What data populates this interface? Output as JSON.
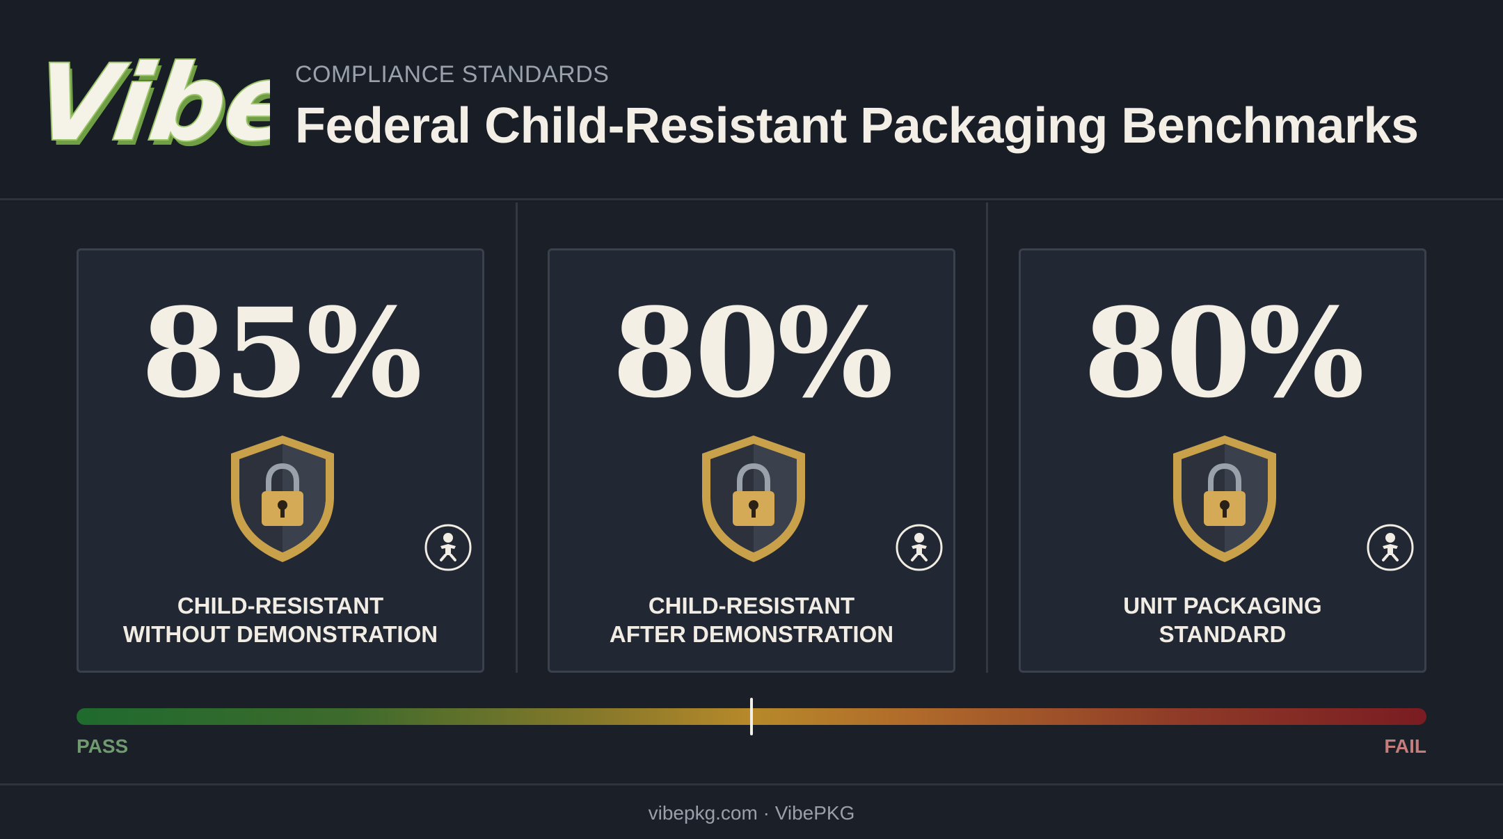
{
  "brand": {
    "logo_text": "Vibe",
    "logo_colors": {
      "fill": "#f5f2e8",
      "outline": "#7fae4e"
    }
  },
  "header": {
    "eyebrow": "COMPLIANCE STANDARDS",
    "title": "Federal Child-Resistant Packaging Benchmarks"
  },
  "cards": [
    {
      "value": "85%",
      "label_line1": "CHILD-RESISTANT",
      "label_line2": "WITHOUT DEMONSTRATION",
      "icons": [
        "shield-lock-icon",
        "child-icon"
      ]
    },
    {
      "value": "80%",
      "label_line1": "CHILD-RESISTANT",
      "label_line2": "AFTER DEMONSTRATION",
      "icons": [
        "shield-lock-icon",
        "child-icon"
      ]
    },
    {
      "value": "80%",
      "label_line1": "UNIT PACKAGING",
      "label_line2": "STANDARD",
      "icons": [
        "shield-lock-icon",
        "child-icon"
      ]
    }
  ],
  "scale": {
    "left_label": "PASS",
    "right_label": "FAIL",
    "marker_fraction": 0.5,
    "colors": {
      "pass": "#1f6a2e",
      "mid": "#b7892a",
      "fail": "#7a1c22"
    }
  },
  "footer": {
    "text": "vibepkg.com · VibePKG"
  }
}
